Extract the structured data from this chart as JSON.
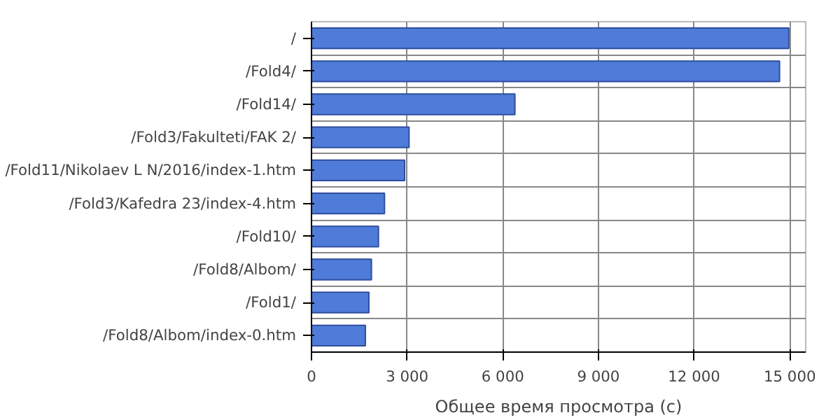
{
  "chart_data": {
    "type": "bar",
    "orientation": "horizontal",
    "xlabel": "Общее время просмотра (с)",
    "categories": [
      "/",
      "/Fold4/",
      "/Fold14/",
      "/Fold3/Fakulteti/FAK 2/",
      "/Fold11/Nikolaev L N/2016/index-1.htm",
      "/Fold3/Kafedra 23/index-4.htm",
      "/Fold10/",
      "/Fold8/Albom/",
      "/Fold1/",
      "/Fold8/Albom/index-0.htm"
    ],
    "values": [
      14970,
      14680,
      6380,
      3060,
      2920,
      2290,
      2100,
      1880,
      1800,
      1690
    ],
    "color": "#4f7bd9",
    "xlim": [
      0,
      15500
    ],
    "xticks": [
      {
        "value": 0,
        "label": "0"
      },
      {
        "value": 3000,
        "label": "3 000"
      },
      {
        "value": 6000,
        "label": "6 000"
      },
      {
        "value": 9000,
        "label": "9 000"
      },
      {
        "value": 12000,
        "label": "12 000"
      },
      {
        "value": 15000,
        "label": "15 000"
      }
    ],
    "grid": true
  }
}
